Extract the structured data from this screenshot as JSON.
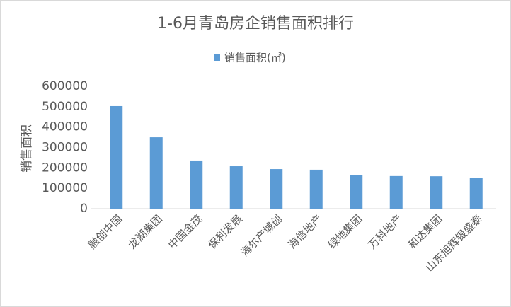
{
  "chart_data": {
    "type": "bar",
    "title": "1-6月青岛房企销售面积排行",
    "y_label": "销售面积",
    "categories": [
      "融创中国",
      "龙湖集团",
      "中国金茂",
      "保利发展",
      "海尔产城创",
      "海信地产",
      "绿地集团",
      "万科地产",
      "和达集团",
      "山东旭辉银盛泰"
    ],
    "series": [
      {
        "name": "销售面积(㎡)",
        "color": "#5b9bd5",
        "values": [
          503000,
          350000,
          236000,
          208000,
          194000,
          191000,
          163000,
          160000,
          159000,
          152000
        ]
      }
    ],
    "ylim": [
      0,
      600000
    ],
    "yticks": [
      0,
      100000,
      200000,
      300000,
      400000,
      500000,
      600000
    ],
    "grid": false,
    "legend": "top"
  }
}
